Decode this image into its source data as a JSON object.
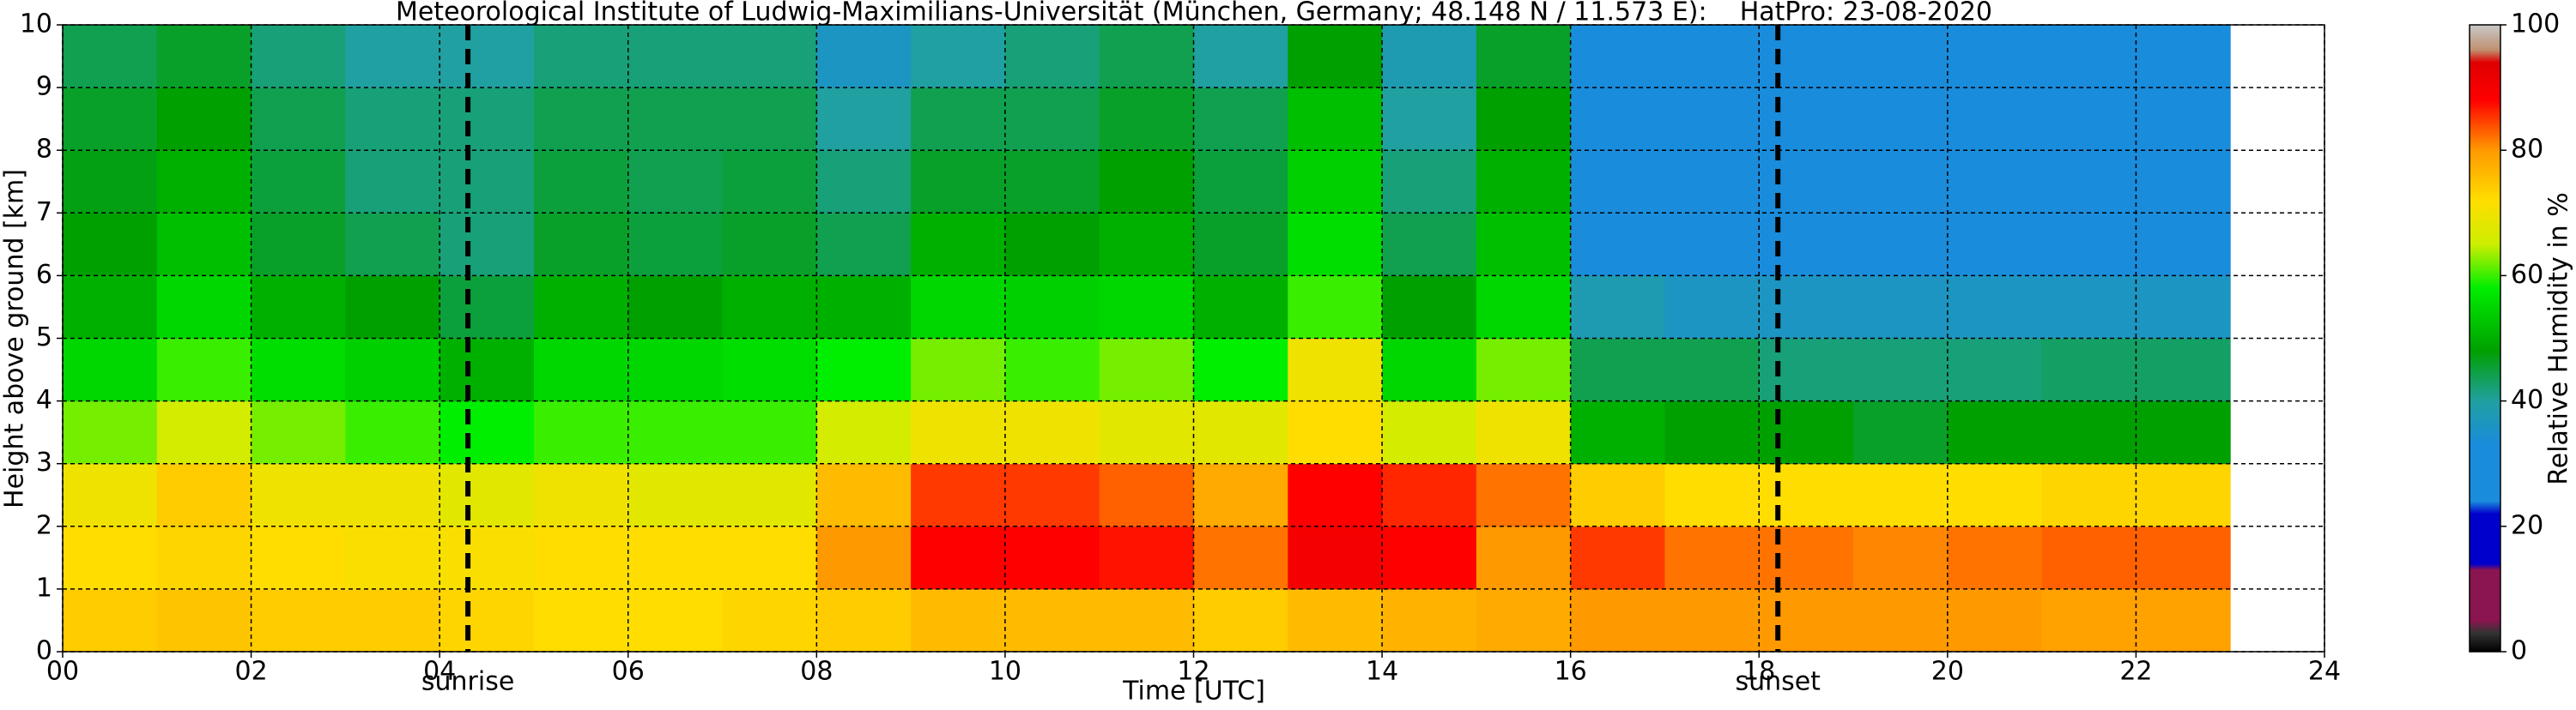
{
  "chart_data": {
    "type": "heatmap",
    "title": "Meteorological Institute of Ludwig-Maximilians-Universität (München, Germany; 48.148 N / 11.573 E):    HatPro: 23-08-2020",
    "xlabel": "Time [UTC]",
    "ylabel": "Height above ground [km]",
    "colorbar_label": "Relative Humidity in %",
    "x": [
      0,
      1,
      2,
      3,
      4,
      5,
      6,
      7,
      8,
      9,
      10,
      11,
      12,
      13,
      14,
      15,
      16,
      17,
      18,
      19,
      20,
      21,
      22,
      23
    ],
    "y": [
      0,
      1,
      2,
      3,
      4,
      5,
      6,
      7,
      8,
      9,
      10
    ],
    "z": [
      [
        74,
        75,
        74,
        74,
        73,
        72,
        72,
        73,
        74,
        76,
        76,
        76,
        74,
        76,
        77,
        78,
        80,
        80,
        80,
        80,
        80,
        79,
        79
      ],
      [
        72,
        73,
        72,
        71,
        71,
        72,
        72,
        72,
        80,
        88,
        88,
        87,
        82,
        90,
        88,
        80,
        85,
        82,
        82,
        81,
        82,
        83,
        83
      ],
      [
        70,
        74,
        70,
        70,
        68,
        70,
        68,
        68,
        76,
        85,
        85,
        83,
        78,
        88,
        86,
        82,
        74,
        72,
        72,
        72,
        72,
        73,
        73
      ],
      [
        62,
        66,
        62,
        60,
        58,
        60,
        60,
        60,
        66,
        70,
        70,
        68,
        68,
        72,
        66,
        70,
        50,
        48,
        48,
        46,
        48,
        48,
        48
      ],
      [
        55,
        60,
        56,
        54,
        50,
        55,
        55,
        56,
        58,
        62,
        60,
        62,
        58,
        70,
        55,
        62,
        44,
        44,
        42,
        42,
        42,
        43,
        43
      ],
      [
        50,
        55,
        50,
        48,
        45,
        50,
        48,
        50,
        50,
        55,
        54,
        55,
        50,
        60,
        48,
        55,
        38,
        36,
        36,
        36,
        36,
        36,
        36
      ],
      [
        48,
        52,
        46,
        44,
        42,
        46,
        45,
        46,
        44,
        50,
        48,
        50,
        46,
        56,
        44,
        52,
        32,
        32,
        32,
        32,
        32,
        32,
        32
      ],
      [
        47,
        50,
        45,
        42,
        42,
        45,
        44,
        45,
        42,
        46,
        46,
        48,
        45,
        54,
        42,
        50,
        30,
        30,
        30,
        30,
        30,
        30,
        30
      ],
      [
        46,
        48,
        44,
        42,
        42,
        44,
        44,
        44,
        40,
        44,
        44,
        46,
        44,
        52,
        40,
        48,
        30,
        30,
        30,
        30,
        30,
        30,
        30
      ],
      [
        44,
        46,
        42,
        40,
        40,
        42,
        42,
        42,
        36,
        40,
        42,
        44,
        40,
        48,
        38,
        46,
        30,
        30,
        30,
        30,
        30,
        30,
        30
      ]
    ],
    "xlim": [
      0,
      24
    ],
    "ylim": [
      0,
      10
    ],
    "zlim": [
      0,
      100
    ],
    "xticks": [
      {
        "value": 0,
        "label": "00"
      },
      {
        "value": 2,
        "label": "02"
      },
      {
        "value": 4,
        "label": "04"
      },
      {
        "value": 6,
        "label": "06"
      },
      {
        "value": 8,
        "label": "08"
      },
      {
        "value": 10,
        "label": "10"
      },
      {
        "value": 12,
        "label": "12"
      },
      {
        "value": 14,
        "label": "14"
      },
      {
        "value": 16,
        "label": "16"
      },
      {
        "value": 18,
        "label": "18"
      },
      {
        "value": 20,
        "label": "20"
      },
      {
        "value": 22,
        "label": "22"
      },
      {
        "value": 24,
        "label": "24"
      }
    ],
    "yticks": [
      0,
      1,
      2,
      3,
      4,
      5,
      6,
      7,
      8,
      9,
      10
    ],
    "zticks": [
      0,
      20,
      40,
      60,
      80,
      100
    ],
    "colormap": [
      [
        0,
        "#000000"
      ],
      [
        3,
        "#333333"
      ],
      [
        5,
        "#8b1550"
      ],
      [
        13,
        "#8b1550"
      ],
      [
        14,
        "#0000cd"
      ],
      [
        22,
        "#0000cd"
      ],
      [
        24,
        "#1a8cdc"
      ],
      [
        33,
        "#1a8cdc"
      ],
      [
        40,
        "#20a0a0"
      ],
      [
        48,
        "#00a000"
      ],
      [
        58,
        "#00ee00"
      ],
      [
        65,
        "#ccee00"
      ],
      [
        72,
        "#ffdd00"
      ],
      [
        80,
        "#ff9900"
      ],
      [
        88,
        "#ff0000"
      ],
      [
        94,
        "#e00000"
      ],
      [
        96,
        "#c09070"
      ],
      [
        100,
        "#c8c8c8"
      ]
    ],
    "grid": true,
    "annotations": [
      {
        "x": 4.3,
        "label": "sunrise"
      },
      {
        "x": 18.2,
        "label": "sunset"
      }
    ]
  }
}
